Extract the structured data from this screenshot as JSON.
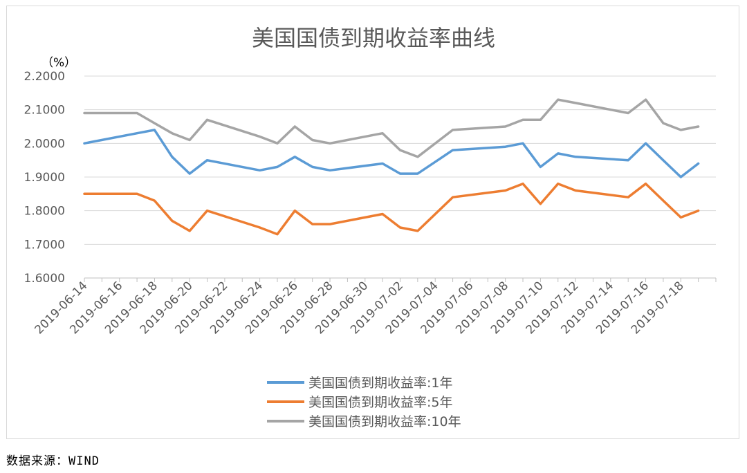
{
  "chart_data": {
    "type": "line",
    "title": "美国国债到期收益率曲线",
    "unit_label": "（%）",
    "ylim": [
      1.6,
      2.2
    ],
    "yticks": [
      "2.2000",
      "2.1000",
      "2.0000",
      "1.9000",
      "1.8000",
      "1.7000",
      "1.6000"
    ],
    "x_tick_labels": [
      "2019-06-14",
      "2019-06-16",
      "2019-06-18",
      "2019-06-20",
      "2019-06-22",
      "2019-06-24",
      "2019-06-26",
      "2019-06-28",
      "2019-06-30",
      "2019-07-02",
      "2019-07-04",
      "2019-07-06",
      "2019-07-08",
      "2019-07-10",
      "2019-07-12",
      "2019-07-14",
      "2019-07-16",
      "2019-07-18"
    ],
    "x": [
      "2019-06-14",
      "2019-06-17",
      "2019-06-18",
      "2019-06-19",
      "2019-06-20",
      "2019-06-21",
      "2019-06-24",
      "2019-06-25",
      "2019-06-26",
      "2019-06-27",
      "2019-06-28",
      "2019-07-01",
      "2019-07-02",
      "2019-07-03",
      "2019-07-05",
      "2019-07-08",
      "2019-07-09",
      "2019-07-10",
      "2019-07-11",
      "2019-07-12",
      "2019-07-15",
      "2019-07-16",
      "2019-07-17",
      "2019-07-18",
      "2019-07-19"
    ],
    "series": [
      {
        "name": "美国国债到期收益率:1年",
        "color": "#5b9bd5",
        "values": [
          2.0,
          2.03,
          2.04,
          1.96,
          1.91,
          1.95,
          1.92,
          1.93,
          1.96,
          1.93,
          1.92,
          1.94,
          1.91,
          1.91,
          1.98,
          1.99,
          2.0,
          1.93,
          1.97,
          1.96,
          1.95,
          2.0,
          1.95,
          1.9,
          1.94
        ]
      },
      {
        "name": "美国国债到期收益率:5年",
        "color": "#ed7d31",
        "values": [
          1.85,
          1.85,
          1.83,
          1.77,
          1.74,
          1.8,
          1.75,
          1.73,
          1.8,
          1.76,
          1.76,
          1.79,
          1.75,
          1.74,
          1.84,
          1.86,
          1.88,
          1.82,
          1.88,
          1.86,
          1.84,
          1.88,
          1.83,
          1.78,
          1.8
        ]
      },
      {
        "name": "美国国债到期收益率:10年",
        "color": "#a5a5a5",
        "values": [
          2.09,
          2.09,
          2.06,
          2.03,
          2.01,
          2.07,
          2.02,
          2.0,
          2.05,
          2.01,
          2.0,
          2.03,
          1.98,
          1.96,
          2.04,
          2.05,
          2.07,
          2.07,
          2.13,
          2.12,
          2.09,
          2.13,
          2.06,
          2.04,
          2.05
        ]
      }
    ],
    "grid": true,
    "legend_position": "bottom"
  },
  "source_note": "数据来源：WIND"
}
